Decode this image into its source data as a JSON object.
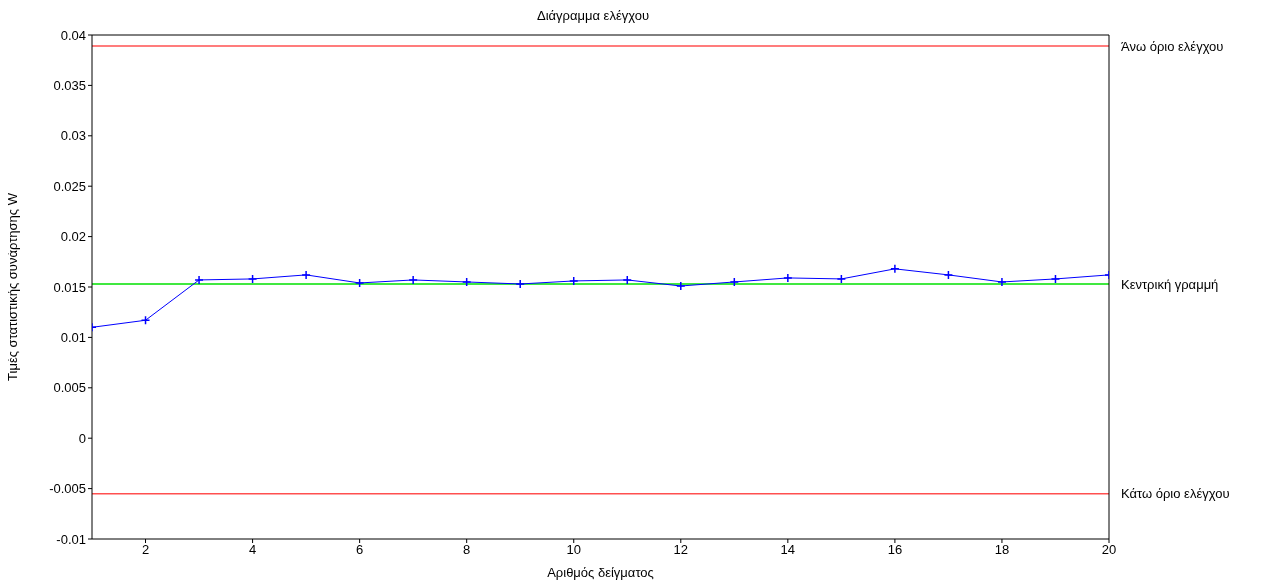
{
  "chart_data": {
    "type": "line",
    "title": "Διάγραμμα ελέγχου",
    "xlabel": "Αριθμός δείγματος",
    "ylabel": "Τιμές στατιστικής συνάρτησης W",
    "x": [
      1,
      2,
      3,
      4,
      5,
      6,
      7,
      8,
      9,
      10,
      11,
      12,
      13,
      14,
      15,
      16,
      17,
      18,
      19,
      20
    ],
    "series": [
      {
        "color": "#0000ff",
        "values": [
          0.011,
          0.0117,
          0.0157,
          0.0158,
          0.0162,
          0.0154,
          0.0157,
          0.0155,
          0.0153,
          0.0156,
          0.0157,
          0.0151,
          0.0155,
          0.0159,
          0.0158,
          0.0168,
          0.0162,
          0.0155,
          0.0158,
          0.0162
        ]
      }
    ],
    "marker": "cross",
    "line_style": "solid",
    "xlim": [
      1,
      20
    ],
    "xticks": [
      2,
      4,
      6,
      8,
      10,
      12,
      14,
      16,
      18,
      20
    ],
    "ylim": [
      -0.01,
      0.04
    ],
    "yticks": [
      -0.01,
      -0.005,
      0,
      0.005,
      0.01,
      0.015,
      0.02,
      0.025,
      0.03,
      0.035,
      0.04
    ],
    "ref_lines": [
      {
        "axis": "y",
        "value": 0.0389,
        "label": "Άνω όριο ελέγχου",
        "color": "#ff5050"
      },
      {
        "axis": "y",
        "value": 0.0153,
        "label": "Κεντρική γραμμή",
        "color": "#00e000"
      },
      {
        "axis": "y",
        "value": -0.0055,
        "label": "Κάτω όριο ελέγχου",
        "color": "#ff5050"
      }
    ]
  }
}
